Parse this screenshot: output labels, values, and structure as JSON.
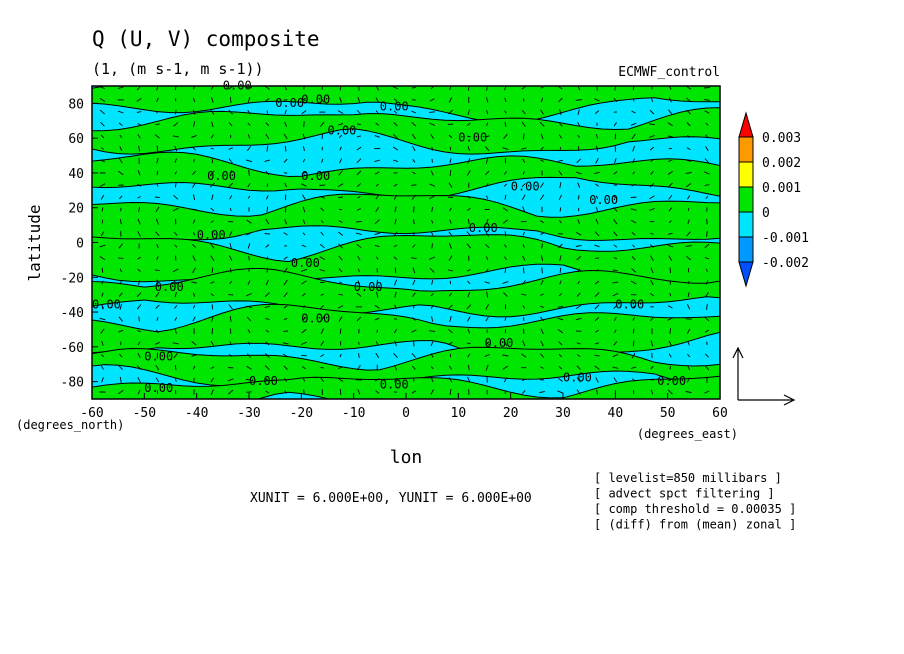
{
  "chart_data": {
    "type": "heatmap",
    "title": "Q (U, V) composite",
    "subtitle": "(1, (m s-1, m s-1))",
    "dataset_label": "ECMWF_control",
    "xlabel": "lon",
    "ylabel": "latitude",
    "x_units": "(degrees_east)",
    "y_units": "(degrees_north)",
    "xlim": [
      -60,
      60
    ],
    "ylim": [
      -90,
      90
    ],
    "x_ticks": [
      "-60",
      "-50",
      "-40",
      "-30",
      "-20",
      "-10",
      "0",
      "10",
      "20",
      "30",
      "40",
      "50",
      "60"
    ],
    "y_ticks": [
      "80",
      "60",
      "40",
      "20",
      "0",
      "-20",
      "-40",
      "-60",
      "-80"
    ],
    "contour_labels": [
      "0.00"
    ],
    "colorbar": {
      "levels": [
        "0.003",
        "0.002",
        "0.001",
        "0",
        "-0.001",
        "-0.002"
      ],
      "colors": [
        "#ff0000",
        "#ff9900",
        "#ffff00",
        "#00e600",
        "#00e5ff",
        "#0099ff",
        "#0050ff"
      ]
    },
    "vector_units": "XUNIT = 6.000E+00, YUNIT = 6.000E+00",
    "notes": [
      "[ levelist=850 millibars ]",
      "[ advect spct filtering ]",
      "[ comp threshold = 0.00035 ]",
      "[ (diff) from (mean) zonal ]"
    ]
  }
}
